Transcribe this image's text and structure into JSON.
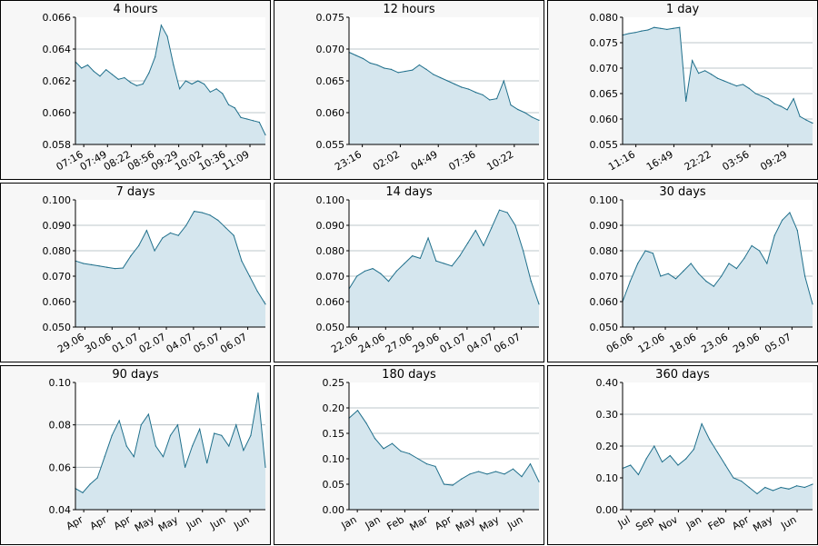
{
  "colors": {
    "line": "#1f6f8b",
    "fill": "#d5e6ee",
    "grid": "#a9b4ba",
    "panel_bg": "#f7f7f7"
  },
  "chart_data": [
    {
      "type": "area",
      "title": "4 hours",
      "ylim": [
        0.058,
        0.066
      ],
      "yticks": [
        "0.058",
        "0.060",
        "0.062",
        "0.064",
        "0.066"
      ],
      "grid_lines": [
        0.06,
        0.062,
        0.064
      ],
      "xticks": [
        "07:16",
        "07:49",
        "08:22",
        "08:56",
        "09:29",
        "10:02",
        "10:36",
        "11:09"
      ],
      "series": [
        {
          "values": [
            0.0632,
            0.0628,
            0.063,
            0.0626,
            0.0623,
            0.0627,
            0.0624,
            0.0621,
            0.0622,
            0.0619,
            0.0617,
            0.0618,
            0.0625,
            0.0635,
            0.0655,
            0.0648,
            0.063,
            0.0615,
            0.062,
            0.0618,
            0.062,
            0.0618,
            0.0613,
            0.0615,
            0.0612,
            0.0605,
            0.0603,
            0.0597,
            0.0596,
            0.0595,
            0.0594,
            0.0586
          ]
        }
      ]
    },
    {
      "type": "area",
      "title": "12 hours",
      "ylim": [
        0.055,
        0.075
      ],
      "yticks": [
        "0.055",
        "0.060",
        "0.065",
        "0.070",
        "0.075"
      ],
      "grid_lines": [
        0.06,
        0.065,
        0.07
      ],
      "xticks": [
        "23:16",
        "02:02",
        "04:49",
        "07:36",
        "10:22"
      ],
      "series": [
        {
          "values": [
            0.0695,
            0.069,
            0.0685,
            0.0678,
            0.0675,
            0.067,
            0.0668,
            0.0663,
            0.0665,
            0.0667,
            0.0675,
            0.0668,
            0.066,
            0.0655,
            0.065,
            0.0645,
            0.064,
            0.0637,
            0.0632,
            0.0628,
            0.062,
            0.0622,
            0.065,
            0.0612,
            0.0605,
            0.06,
            0.0593,
            0.0588
          ]
        }
      ]
    },
    {
      "type": "area",
      "title": "1 day",
      "ylim": [
        0.055,
        0.08
      ],
      "yticks": [
        "0.055",
        "0.060",
        "0.065",
        "0.070",
        "0.075",
        "0.080"
      ],
      "grid_lines": [
        0.06,
        0.065,
        0.07,
        0.075
      ],
      "xticks": [
        "11:16",
        "16:49",
        "22:22",
        "03:56",
        "09:29"
      ],
      "series": [
        {
          "values": [
            0.0765,
            0.0768,
            0.077,
            0.0773,
            0.0775,
            0.078,
            0.0778,
            0.0776,
            0.0778,
            0.078,
            0.0635,
            0.0715,
            0.069,
            0.0695,
            0.0688,
            0.068,
            0.0675,
            0.067,
            0.0665,
            0.0668,
            0.066,
            0.065,
            0.0645,
            0.064,
            0.063,
            0.0625,
            0.0618,
            0.064,
            0.0605,
            0.0598,
            0.0592
          ]
        }
      ]
    },
    {
      "type": "area",
      "title": "7 days",
      "ylim": [
        0.05,
        0.1
      ],
      "yticks": [
        "0.050",
        "0.060",
        "0.070",
        "0.080",
        "0.090",
        "0.100"
      ],
      "grid_lines": [
        0.06,
        0.07,
        0.08,
        0.09
      ],
      "xticks": [
        "29.06",
        "30.06",
        "01.07",
        "02.07",
        "04.07",
        "05.07",
        "06.07"
      ],
      "series": [
        {
          "values": [
            0.076,
            0.075,
            0.0745,
            0.074,
            0.0735,
            0.073,
            0.0732,
            0.078,
            0.082,
            0.088,
            0.08,
            0.085,
            0.087,
            0.086,
            0.09,
            0.0955,
            0.095,
            0.094,
            0.092,
            0.089,
            0.086,
            0.076,
            0.07,
            0.064,
            0.059
          ]
        }
      ]
    },
    {
      "type": "area",
      "title": "14 days",
      "ylim": [
        0.05,
        0.1
      ],
      "yticks": [
        "0.050",
        "0.060",
        "0.070",
        "0.080",
        "0.090",
        "0.100"
      ],
      "grid_lines": [
        0.06,
        0.07,
        0.08,
        0.09
      ],
      "xticks": [
        "22.06",
        "24.06",
        "27.06",
        "29.06",
        "01.07",
        "04.07",
        "06.07"
      ],
      "series": [
        {
          "values": [
            0.065,
            0.07,
            0.072,
            0.073,
            0.071,
            0.068,
            0.072,
            0.075,
            0.078,
            0.077,
            0.085,
            0.076,
            0.075,
            0.074,
            0.078,
            0.083,
            0.088,
            0.082,
            0.089,
            0.096,
            0.095,
            0.09,
            0.08,
            0.068,
            0.059
          ]
        }
      ]
    },
    {
      "type": "area",
      "title": "30 days",
      "ylim": [
        0.05,
        0.1
      ],
      "yticks": [
        "0.050",
        "0.060",
        "0.070",
        "0.080",
        "0.090",
        "0.100"
      ],
      "grid_lines": [
        0.06,
        0.07,
        0.08,
        0.09
      ],
      "xticks": [
        "06.06",
        "12.06",
        "18.06",
        "23.06",
        "29.06",
        "05.07"
      ],
      "series": [
        {
          "values": [
            0.06,
            0.068,
            0.075,
            0.08,
            0.079,
            0.07,
            0.071,
            0.069,
            0.072,
            0.075,
            0.071,
            0.068,
            0.066,
            0.07,
            0.075,
            0.073,
            0.077,
            0.082,
            0.08,
            0.075,
            0.086,
            0.092,
            0.095,
            0.088,
            0.07,
            0.059
          ]
        }
      ]
    },
    {
      "type": "area",
      "title": "90 days",
      "ylim": [
        0.04,
        0.1
      ],
      "yticks": [
        "0.04",
        "0.06",
        "0.08",
        "0.10"
      ],
      "grid_lines": [
        0.06,
        0.08
      ],
      "xticks": [
        "Apr",
        "Apr",
        "Apr",
        "May",
        "May",
        "Jun",
        "Jun",
        "Jun"
      ],
      "series": [
        {
          "values": [
            0.05,
            0.048,
            0.052,
            0.055,
            0.065,
            0.075,
            0.082,
            0.07,
            0.065,
            0.08,
            0.085,
            0.07,
            0.065,
            0.075,
            0.08,
            0.06,
            0.07,
            0.078,
            0.062,
            0.076,
            0.075,
            0.07,
            0.08,
            0.068,
            0.075,
            0.095,
            0.06
          ]
        }
      ]
    },
    {
      "type": "area",
      "title": "180 days",
      "ylim": [
        0.0,
        0.25
      ],
      "yticks": [
        "0.00",
        "0.05",
        "0.10",
        "0.15",
        "0.20",
        "0.25"
      ],
      "grid_lines": [
        0.05,
        0.1,
        0.15,
        0.2
      ],
      "xticks": [
        "Jan",
        "Jan",
        "Feb",
        "Mar",
        "Apr",
        "May",
        "May",
        "Jun"
      ],
      "series": [
        {
          "values": [
            0.18,
            0.195,
            0.17,
            0.14,
            0.12,
            0.13,
            0.115,
            0.11,
            0.1,
            0.09,
            0.085,
            0.05,
            0.048,
            0.06,
            0.07,
            0.075,
            0.07,
            0.075,
            0.07,
            0.08,
            0.065,
            0.09,
            0.055
          ]
        }
      ]
    },
    {
      "type": "area",
      "title": "360 days",
      "ylim": [
        0.0,
        0.4
      ],
      "yticks": [
        "0.00",
        "0.10",
        "0.20",
        "0.30",
        "0.40"
      ],
      "grid_lines": [
        0.1,
        0.2,
        0.3
      ],
      "xticks": [
        "Jul",
        "Sep",
        "Nov",
        "Jan",
        "Feb",
        "Apr",
        "May",
        "Jun"
      ],
      "series": [
        {
          "values": [
            0.13,
            0.14,
            0.11,
            0.16,
            0.2,
            0.15,
            0.17,
            0.14,
            0.16,
            0.19,
            0.27,
            0.22,
            0.18,
            0.14,
            0.1,
            0.09,
            0.07,
            0.05,
            0.07,
            0.06,
            0.07,
            0.065,
            0.075,
            0.07,
            0.08
          ]
        }
      ]
    }
  ]
}
